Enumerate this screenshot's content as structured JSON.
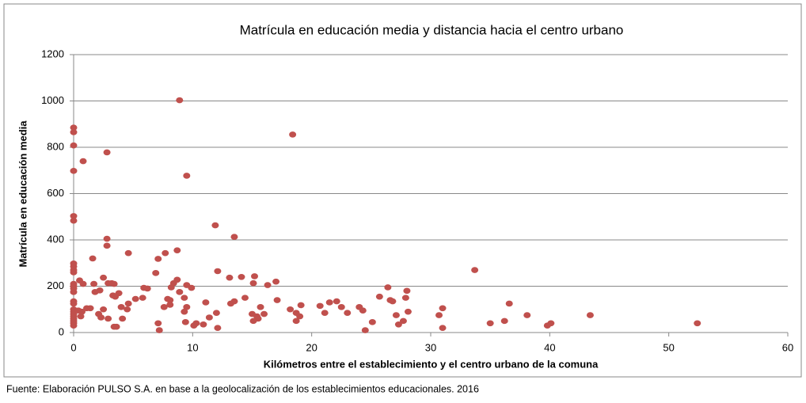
{
  "chart_data": {
    "type": "scatter",
    "title": "Matrícula en educación media y distancia  hacia el centro urbano",
    "x_label": "Kilómetros  entre el establecimiento y el centro urbano de la comuna",
    "y_label": "Matrícula en educación media",
    "source": "Fuente: Elaboración PULSO S.A. en base a la geolocalización de los establecimientos educacionales. 2016",
    "color": "#c0504d",
    "grid": true,
    "xlim": [
      0,
      60
    ],
    "xticks": [
      0,
      10,
      20,
      30,
      40,
      50,
      60
    ],
    "ylim": [
      0,
      1200
    ],
    "yticks": [
      0,
      200,
      400,
      600,
      800,
      1000,
      1200
    ],
    "x": [
      0,
      0,
      0,
      0,
      0,
      0,
      0,
      0,
      0,
      0,
      0,
      0,
      0,
      0,
      0,
      0,
      0,
      0,
      0,
      0,
      0,
      0,
      0,
      0,
      0.8,
      2.8,
      8.9,
      9.5,
      18.4,
      2.8,
      2.8,
      4.6,
      8.7,
      7.7,
      11.9,
      13.5,
      1.6,
      7.1,
      33.7,
      12.1,
      6.9,
      13.1,
      14.1,
      15.2,
      17,
      2.5,
      8.7,
      8.4,
      15.1,
      16.3,
      9.5,
      9.9,
      5.9,
      6.2,
      8.2,
      0.5,
      0.8,
      1.7,
      3.2,
      3.4,
      2.9,
      2.2,
      3.8,
      3.3,
      1.8,
      3.5,
      5.2,
      5.8,
      7.9,
      8.1,
      8.9,
      9.3,
      11.1,
      13.2,
      13.5,
      14.4,
      17.1,
      15.7,
      19.1,
      20.7,
      21.5,
      22.1,
      22.5,
      21.1,
      23,
      24,
      24.3,
      25.7,
      26.4,
      26.6,
      26.8,
      27.9,
      28,
      27.1,
      27.7,
      28.1,
      27.3,
      30.7,
      31,
      31,
      35,
      36.2,
      36.6,
      38.1,
      39.8,
      40.1,
      43.4,
      52.4,
      25.1,
      24.5,
      18.2,
      18.7,
      19,
      18.7,
      15,
      15.4,
      15.5,
      15.1,
      12,
      12.1,
      11.4,
      10.9,
      10.3,
      10.1,
      9.4,
      9.3,
      9.5,
      8.1,
      7.6,
      7.1,
      7.2,
      4.6,
      4.5,
      4.1,
      4,
      3.4,
      3.6,
      2.9,
      2.5,
      2.3,
      2.1,
      1.1,
      1.4,
      0.6,
      0.4,
      0.7,
      16
    ],
    "values": [
      885,
      865,
      808,
      698,
      503,
      483,
      298,
      285,
      270,
      260,
      210,
      200,
      190,
      175,
      135,
      125,
      100,
      90,
      80,
      70,
      60,
      50,
      40,
      30,
      740,
      778,
      1003,
      677,
      855,
      405,
      375,
      343,
      355,
      343,
      463,
      413,
      320,
      318,
      270,
      265,
      257,
      237,
      240,
      243,
      220,
      237,
      228,
      213,
      213,
      205,
      205,
      193,
      193,
      190,
      195,
      225,
      210,
      210,
      213,
      210,
      213,
      182,
      170,
      160,
      175,
      155,
      145,
      150,
      145,
      140,
      175,
      150,
      130,
      125,
      135,
      150,
      140,
      110,
      118,
      115,
      130,
      135,
      110,
      85,
      85,
      110,
      95,
      155,
      195,
      140,
      135,
      150,
      180,
      75,
      50,
      90,
      35,
      75,
      105,
      20,
      40,
      50,
      125,
      75,
      30,
      40,
      75,
      40,
      45,
      10,
      100,
      85,
      70,
      50,
      80,
      70,
      60,
      50,
      85,
      20,
      65,
      35,
      40,
      30,
      45,
      90,
      110,
      120,
      110,
      40,
      10,
      125,
      100,
      60,
      110,
      25,
      25,
      60,
      100,
      65,
      80,
      105,
      105,
      70,
      95,
      90,
      80
    ]
  }
}
